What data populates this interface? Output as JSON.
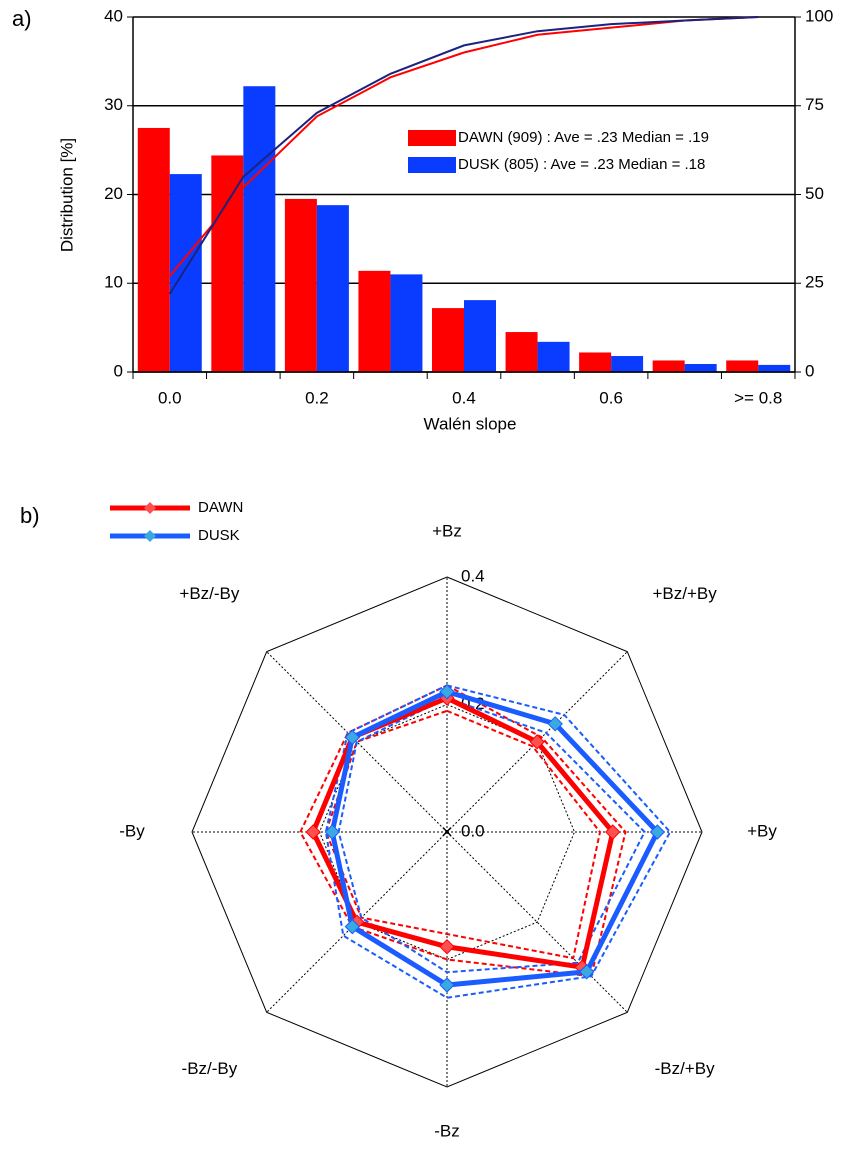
{
  "chart_data": [
    {
      "type": "bar",
      "label": "a)",
      "categories": [
        "0.0",
        null,
        "0.2",
        null,
        "0.4",
        null,
        "0.6",
        null,
        ">= 0.8"
      ],
      "ylabel": "Distribution [%]",
      "xlabel": "Walén slope",
      "ylim": [
        0,
        40
      ],
      "yticks": [
        0,
        10,
        20,
        30,
        40
      ],
      "y2lim": [
        0,
        100
      ],
      "y2ticks": [
        0,
        25,
        50,
        75,
        100
      ],
      "grid": true,
      "series": [
        {
          "name": "DAWN (909) : Ave = .23 Median = .19",
          "color": "#ff0000",
          "values": [
            27.5,
            24.4,
            19.5,
            11.4,
            7.2,
            4.5,
            2.2,
            1.3,
            1.3
          ]
        },
        {
          "name": "DUSK (805) : Ave = .23 Median = .18",
          "color": "#0a3cff",
          "values": [
            22.3,
            32.2,
            18.8,
            11.0,
            8.1,
            3.4,
            1.8,
            0.9,
            0.8
          ]
        },
        {
          "type": "line",
          "axis": "y2",
          "color": "#ff0000",
          "values": [
            27,
            52,
            72,
            83,
            90,
            95,
            97,
            99,
            100
          ]
        },
        {
          "type": "line",
          "axis": "y2",
          "color": "#1a237e",
          "values": [
            22,
            55,
            73,
            84,
            92,
            96,
            98,
            99,
            100
          ]
        }
      ]
    },
    {
      "type": "radar",
      "label": "b)",
      "axes": [
        "+Bz",
        "+Bz/+By",
        "+By",
        "-Bz/+By",
        "-Bz",
        "-Bz/-By",
        "-By",
        "+Bz/-By"
      ],
      "rlim": [
        0,
        0.4
      ],
      "rticks": [
        {
          "value": 0,
          "label": "0.0"
        },
        {
          "value": 0.2,
          "label": "0.2"
        },
        {
          "value": 0.4,
          "label": "0.4"
        }
      ],
      "series": [
        {
          "name": "DAWN",
          "color": "#ff0000",
          "marker_color": "#ff5050",
          "values": [
            0.21,
            0.2,
            0.26,
            0.3,
            0.18,
            0.2,
            0.21,
            0.21
          ],
          "lower": [
            0.19,
            0.19,
            0.24,
            0.28,
            0.16,
            0.19,
            0.19,
            0.2
          ],
          "upper": [
            0.23,
            0.21,
            0.28,
            0.32,
            0.2,
            0.21,
            0.23,
            0.22
          ]
        },
        {
          "name": "DUSK",
          "color": "#1a5cff",
          "marker_color": "#39a9e0",
          "values": [
            0.22,
            0.24,
            0.33,
            0.31,
            0.24,
            0.21,
            0.18,
            0.21
          ],
          "lower": [
            0.21,
            0.22,
            0.31,
            0.29,
            0.22,
            0.19,
            0.17,
            0.2
          ],
          "upper": [
            0.23,
            0.26,
            0.35,
            0.32,
            0.26,
            0.23,
            0.19,
            0.22
          ]
        }
      ]
    }
  ]
}
